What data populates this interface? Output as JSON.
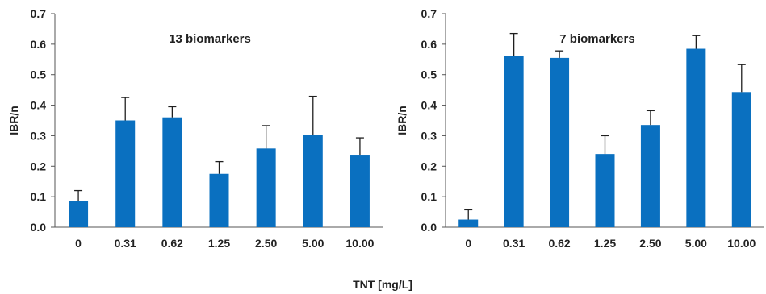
{
  "figure": {
    "xlabel": "TNT [mg/L]"
  },
  "colors": {
    "bar": "#0a70c0",
    "error_bar": "#1f1f1f",
    "axis": "#555555"
  },
  "chart_data": [
    {
      "type": "bar",
      "title": "13 biomarkers",
      "ylabel": "IBR/n",
      "xlabel": "TNT [mg/L]",
      "categories": [
        "0",
        "0.31",
        "0.62",
        "1.25",
        "2.50",
        "5.00",
        "10.00"
      ],
      "values": [
        0.085,
        0.35,
        0.36,
        0.175,
        0.258,
        0.302,
        0.235
      ],
      "errors": [
        0.035,
        0.075,
        0.035,
        0.04,
        0.075,
        0.127,
        0.058
      ],
      "ylim": [
        0,
        0.7
      ],
      "yticks": [
        "0.0",
        "0.1",
        "0.2",
        "0.3",
        "0.4",
        "0.5",
        "0.6",
        "0.7"
      ],
      "grid": false,
      "legend": "none"
    },
    {
      "type": "bar",
      "title": "7 biomarkers",
      "ylabel": "IBR/n",
      "xlabel": "TNT [mg/L]",
      "categories": [
        "0",
        "0.31",
        "0.62",
        "1.25",
        "2.50",
        "5.00",
        "10.00"
      ],
      "values": [
        0.025,
        0.56,
        0.555,
        0.24,
        0.335,
        0.585,
        0.443
      ],
      "errors": [
        0.032,
        0.075,
        0.023,
        0.06,
        0.047,
        0.043,
        0.09
      ],
      "ylim": [
        0,
        0.7
      ],
      "yticks": [
        "0.0",
        "0.1",
        "0.2",
        "0.3",
        "0.4",
        "0.5",
        "0.6",
        "0.7"
      ],
      "grid": false,
      "legend": "none"
    }
  ]
}
